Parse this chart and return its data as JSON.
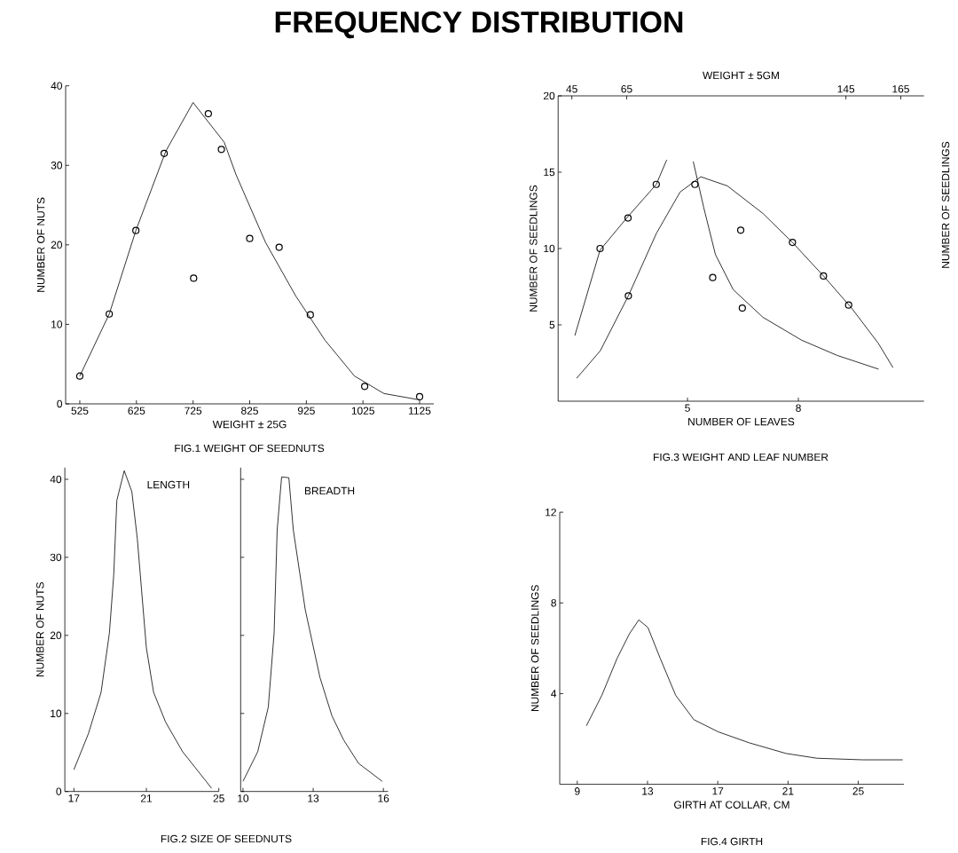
{
  "chart_data": [
    {
      "type": "line",
      "title": "FREQUENCY DISTRIBUTION",
      "xlabel": "WEIGHT ± 25G",
      "ylabel": "NUMBER OF NUTS",
      "annotations": [
        "FIG.1 WEIGHT OF SEEDNUTS"
      ],
      "xlim": [
        500,
        1150
      ],
      "ylim": [
        0,
        40
      ],
      "xticks": [
        525,
        625,
        725,
        825,
        925,
        1025,
        1125
      ],
      "yticks": [
        0,
        10,
        20,
        30,
        40
      ],
      "series": [
        {
          "type": "line",
          "color": "#000000",
          "x": [
            525,
            577,
            624,
            677,
            725,
            780,
            801,
            853,
            906,
            958,
            1010,
            1062,
            1125
          ],
          "values": [
            3.5,
            11.3,
            21.8,
            31.8,
            37.9,
            32.9,
            28.8,
            20.3,
            13.6,
            8.0,
            3.5,
            1.3,
            0.5
          ]
        },
        {
          "type": "scatter",
          "marker": "circle",
          "color": "#000000",
          "x": [
            525,
            577,
            624,
            674,
            752,
            775,
            726,
            825,
            877,
            932,
            1028,
            1125
          ],
          "values": [
            3.5,
            11.3,
            21.8,
            31.5,
            36.5,
            32,
            15.8,
            20.8,
            19.7,
            11.2,
            2.2,
            0.9
          ]
        }
      ]
    },
    {
      "type": "line",
      "xlabel": "NUMBER OF LEAVES",
      "x2label": "WEIGHT ± 5GM",
      "ylabel": "NUMBER OF SEEDLINGS",
      "y2label": "NUMBER OF SEEDLINGS",
      "annotations": [
        "FIG.3 WEIGHT AND LEAF NUMBER"
      ],
      "xlim": [
        1.5,
        11.4
      ],
      "xticks": [
        5,
        8
      ],
      "x2lim": [
        40,
        173.5
      ],
      "x2ticks": [
        45,
        65,
        145,
        165
      ],
      "ylim": [
        0,
        20
      ],
      "yticks": [
        5,
        10,
        15,
        20
      ],
      "series": [
        {
          "type": "line",
          "color": "#000000",
          "x": [
            2.0,
            2.64,
            3.4,
            4.16,
            4.8,
            5.36,
            6.08,
            7.04,
            7.84,
            8.68,
            9.44,
            10.16,
            10.56
          ],
          "values": [
            1.5,
            3.3,
            6.9,
            11.0,
            13.7,
            14.7,
            14.1,
            12.3,
            10.4,
            8.2,
            6.1,
            3.8,
            2.2
          ]
        },
        {
          "type": "scatter",
          "marker": "circle",
          "color": "#000000",
          "x": [
            3.4,
            5.2,
            6.44,
            7.84,
            8.68,
            9.36
          ],
          "values": [
            6.9,
            14.2,
            11.2,
            10.4,
            8.2,
            6.3
          ]
        },
        {
          "type": "line",
          "axis": "x2",
          "color": "#000000",
          "x": [
            46.1,
            55.3,
            65.5,
            75.8,
            79.6,
            84,
            89.3,
            93.1,
            97.4,
            103.9,
            114.7,
            128.8,
            141.8,
            156.9
          ],
          "values": [
            4.3,
            9.9,
            12.1,
            14.2,
            15.8,
            null,
            15.7,
            12.7,
            9.6,
            7.3,
            5.5,
            4.0,
            3.0,
            2.1
          ]
        },
        {
          "type": "scatter",
          "axis": "x2",
          "marker": "circle",
          "color": "#000000",
          "x": [
            55.3,
            65.5,
            75.8,
            96.4,
            107.2
          ],
          "values": [
            10.0,
            12.0,
            14.2,
            8.1,
            6.1
          ]
        }
      ]
    },
    {
      "type": "line",
      "ylabel": "NUMBER OF NUTS",
      "annotations": [
        "FIG.2 SIZE OF SEEDNUTS"
      ],
      "xlim": [
        16.5,
        25
      ],
      "xticks": [
        17,
        21,
        25
      ],
      "ylim": [
        0,
        41.5
      ],
      "yticks": [
        0,
        10,
        20,
        30,
        40
      ],
      "series": [
        {
          "name": "LENGTH",
          "color": "#000000",
          "x": [
            17,
            17.8,
            18.5,
            18.96,
            19.2,
            19.37,
            19.78,
            20.2,
            20.5,
            21,
            21.4,
            22.06,
            23,
            24.3,
            24.6
          ],
          "values": [
            2.8,
            7.4,
            12.7,
            20.3,
            27.8,
            37.3,
            41.1,
            38.4,
            32.4,
            18.4,
            12.7,
            8.9,
            5.1,
            1.3,
            0.4
          ]
        }
      ]
    },
    {
      "type": "line",
      "tick_labels": "x",
      "xlim": [
        9.9,
        16.2
      ],
      "xticks": [
        10,
        13,
        16
      ],
      "ylim": [
        0,
        41.5
      ],
      "yticks": [
        0,
        10,
        20,
        30,
        40
      ],
      "series": [
        {
          "name": "BREADTH",
          "color": "#000000",
          "x": [
            10,
            10.63,
            11.08,
            11.33,
            11.46,
            11.65,
            11.96,
            12.15,
            12.66,
            13.29,
            13.8,
            14.3,
            14.94,
            15.95
          ],
          "values": [
            1.3,
            5.1,
            10.8,
            20.3,
            33.5,
            40.3,
            40.2,
            33.5,
            23.3,
            14.6,
            9.7,
            6.6,
            3.6,
            1.3
          ]
        }
      ]
    },
    {
      "type": "line",
      "xlabel": "GIRTH AT COLLAR, CM",
      "ylabel": "NUMBER OF SEEDLINGS",
      "annotations": [
        "FIG.4 GIRTH"
      ],
      "xlim": [
        8,
        27.6
      ],
      "xticks": [
        9,
        13,
        17,
        21,
        25
      ],
      "ylim": [
        0,
        12
      ],
      "yticks": [
        4,
        8,
        12
      ],
      "series": [
        {
          "color": "#000000",
          "x": [
            9.52,
            10.4,
            11.27,
            11.97,
            12.5,
            13.02,
            13.72,
            14.6,
            15.64,
            17.04,
            18.79,
            20.89,
            22.64,
            25.26,
            27.53
          ],
          "values": [
            2.58,
            3.93,
            5.56,
            6.64,
            7.25,
            6.92,
            5.56,
            3.93,
            2.85,
            2.31,
            1.83,
            1.36,
            1.15,
            1.08,
            1.08
          ]
        }
      ]
    }
  ]
}
